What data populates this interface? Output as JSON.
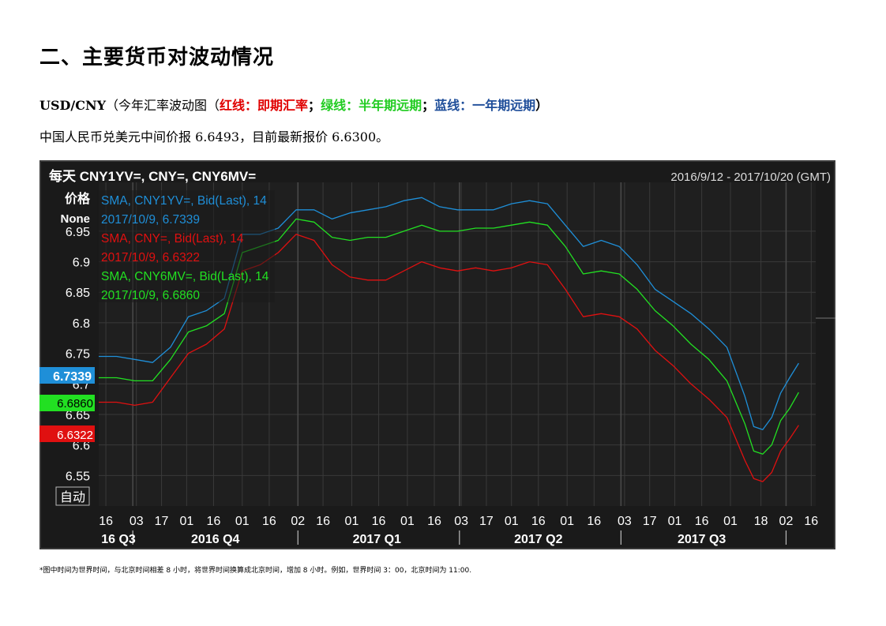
{
  "heading": "二、主要货币对波动情况",
  "subtitle": {
    "pair": "USD/CNY",
    "open": "（今年汇率波动图（",
    "red_label": "红线：即期汇率",
    "sep1": "；",
    "green_label": "绿线：半年期远期",
    "sep2": "；",
    "blue_label": "蓝线：一年期远期",
    "close": "）"
  },
  "fixing_text": "中国人民币兑美元中间价报 6.6493，目前最新报价 6.6300。",
  "footnote": "*图中时间为世界时间，与北京时间相差 8 小时，将世界时间换算成北京时间，增加 8 小时。例如，世界时间 3：00，北京时间为 11:00.",
  "chart_data": {
    "type": "line",
    "title": "每天 CNY1YV=, CNY=, CNY6MV=",
    "date_range": "2016/9/12 - 2017/10/20 (GMT)",
    "ylabel": "价格",
    "ylabel2": "None",
    "auto_button": "自动",
    "ylim": [
      6.5,
      7.03
    ],
    "y_ticks": [
      6.55,
      6.6,
      6.65,
      6.7,
      6.75,
      6.8,
      6.85,
      6.9,
      6.95
    ],
    "y_tick_labels": [
      "6.55",
      "6.6",
      "6.65",
      "6.7",
      "6.75",
      "6.8",
      "6.85",
      "6.9",
      "6.95"
    ],
    "x_days": [
      0,
      396
    ],
    "x_ticks": [
      {
        "label": "16",
        "day": 4
      },
      {
        "label": "03",
        "day": 21
      },
      {
        "label": "17",
        "day": 35
      },
      {
        "label": "01",
        "day": 49
      },
      {
        "label": "16",
        "day": 64
      },
      {
        "label": "01",
        "day": 80
      },
      {
        "label": "16",
        "day": 95
      },
      {
        "label": "02",
        "day": 111
      },
      {
        "label": "16",
        "day": 125
      },
      {
        "label": "01",
        "day": 141
      },
      {
        "label": "16",
        "day": 156
      },
      {
        "label": "01",
        "day": 172
      },
      {
        "label": "16",
        "day": 187
      },
      {
        "label": "03",
        "day": 202
      },
      {
        "label": "17",
        "day": 216
      },
      {
        "label": "01",
        "day": 230
      },
      {
        "label": "16",
        "day": 245
      },
      {
        "label": "01",
        "day": 261
      },
      {
        "label": "16",
        "day": 276
      },
      {
        "label": "03",
        "day": 293
      },
      {
        "label": "17",
        "day": 307
      },
      {
        "label": "01",
        "day": 321
      },
      {
        "label": "16",
        "day": 336
      },
      {
        "label": "01",
        "day": 352
      },
      {
        "label": "18",
        "day": 369
      },
      {
        "label": "02",
        "day": 383
      },
      {
        "label": "16",
        "day": 397
      }
    ],
    "quarters": [
      {
        "label": "16 Q3",
        "day": 11
      },
      {
        "label": "2016 Q4",
        "day": 65
      },
      {
        "label": "2017 Q1",
        "day": 155
      },
      {
        "label": "2017 Q2",
        "day": 245
      },
      {
        "label": "2017 Q3",
        "day": 336
      }
    ],
    "quarter_dividers": [
      19,
      111,
      201,
      291,
      383
    ],
    "series": [
      {
        "name": "SMA, CNY1YV=, Bid(Last),  14",
        "last_label": "2017/10/9, 6.7339",
        "last_value": "6.7339",
        "color": "#1f8fd8",
        "days": [
          0,
          10,
          20,
          30,
          40,
          50,
          60,
          70,
          80,
          90,
          100,
          110,
          120,
          130,
          140,
          150,
          160,
          170,
          180,
          190,
          200,
          210,
          220,
          230,
          240,
          250,
          260,
          270,
          280,
          290,
          300,
          310,
          320,
          330,
          340,
          350,
          360,
          365,
          370,
          375,
          380,
          385,
          390
        ],
        "values": [
          6.745,
          6.745,
          6.74,
          6.735,
          6.76,
          6.81,
          6.82,
          6.84,
          6.945,
          6.945,
          6.955,
          6.985,
          6.985,
          6.97,
          6.98,
          6.985,
          6.99,
          7.0,
          7.005,
          6.99,
          6.985,
          6.985,
          6.985,
          6.995,
          7.0,
          6.995,
          6.96,
          6.925,
          6.935,
          6.925,
          6.895,
          6.855,
          6.835,
          6.815,
          6.79,
          6.76,
          6.68,
          6.63,
          6.625,
          6.645,
          6.685,
          6.71,
          6.7339
        ]
      },
      {
        "name": "SMA, CNY=, Bid(Last),  14",
        "last_label": "2017/10/9, 6.6322",
        "last_value": "6.6322",
        "color": "#e01010",
        "days": [
          0,
          10,
          20,
          30,
          40,
          50,
          60,
          70,
          80,
          90,
          100,
          110,
          120,
          130,
          140,
          150,
          160,
          170,
          180,
          190,
          200,
          210,
          220,
          230,
          240,
          250,
          260,
          270,
          280,
          290,
          300,
          310,
          320,
          330,
          340,
          350,
          360,
          365,
          370,
          375,
          380,
          385,
          390
        ],
        "values": [
          6.67,
          6.67,
          6.665,
          6.67,
          6.71,
          6.75,
          6.765,
          6.79,
          6.885,
          6.895,
          6.915,
          6.945,
          6.935,
          6.895,
          6.875,
          6.87,
          6.87,
          6.885,
          6.9,
          6.89,
          6.885,
          6.89,
          6.885,
          6.89,
          6.9,
          6.895,
          6.855,
          6.81,
          6.815,
          6.81,
          6.79,
          6.755,
          6.73,
          6.7,
          6.675,
          6.645,
          6.575,
          6.545,
          6.54,
          6.555,
          6.59,
          6.61,
          6.6322
        ]
      },
      {
        "name": "SMA, CNY6MV=, Bid(Last),  14",
        "last_label": "2017/10/9, 6.6860",
        "last_value": "6.6860",
        "color": "#22e022",
        "days": [
          0,
          10,
          20,
          30,
          40,
          50,
          60,
          70,
          80,
          90,
          100,
          110,
          120,
          130,
          140,
          150,
          160,
          170,
          180,
          190,
          200,
          210,
          220,
          230,
          240,
          250,
          260,
          270,
          280,
          290,
          300,
          310,
          320,
          330,
          340,
          350,
          360,
          365,
          370,
          375,
          380,
          385,
          390
        ],
        "values": [
          6.71,
          6.71,
          6.705,
          6.705,
          6.74,
          6.785,
          6.795,
          6.815,
          6.915,
          6.925,
          6.935,
          6.97,
          6.965,
          6.94,
          6.935,
          6.94,
          6.94,
          6.95,
          6.96,
          6.95,
          6.95,
          6.955,
          6.955,
          6.96,
          6.965,
          6.96,
          6.925,
          6.88,
          6.885,
          6.88,
          6.855,
          6.82,
          6.795,
          6.765,
          6.74,
          6.705,
          6.635,
          6.59,
          6.585,
          6.6,
          6.64,
          6.66,
          6.686
        ]
      }
    ],
    "grid": true,
    "legend_position": "top-left"
  }
}
